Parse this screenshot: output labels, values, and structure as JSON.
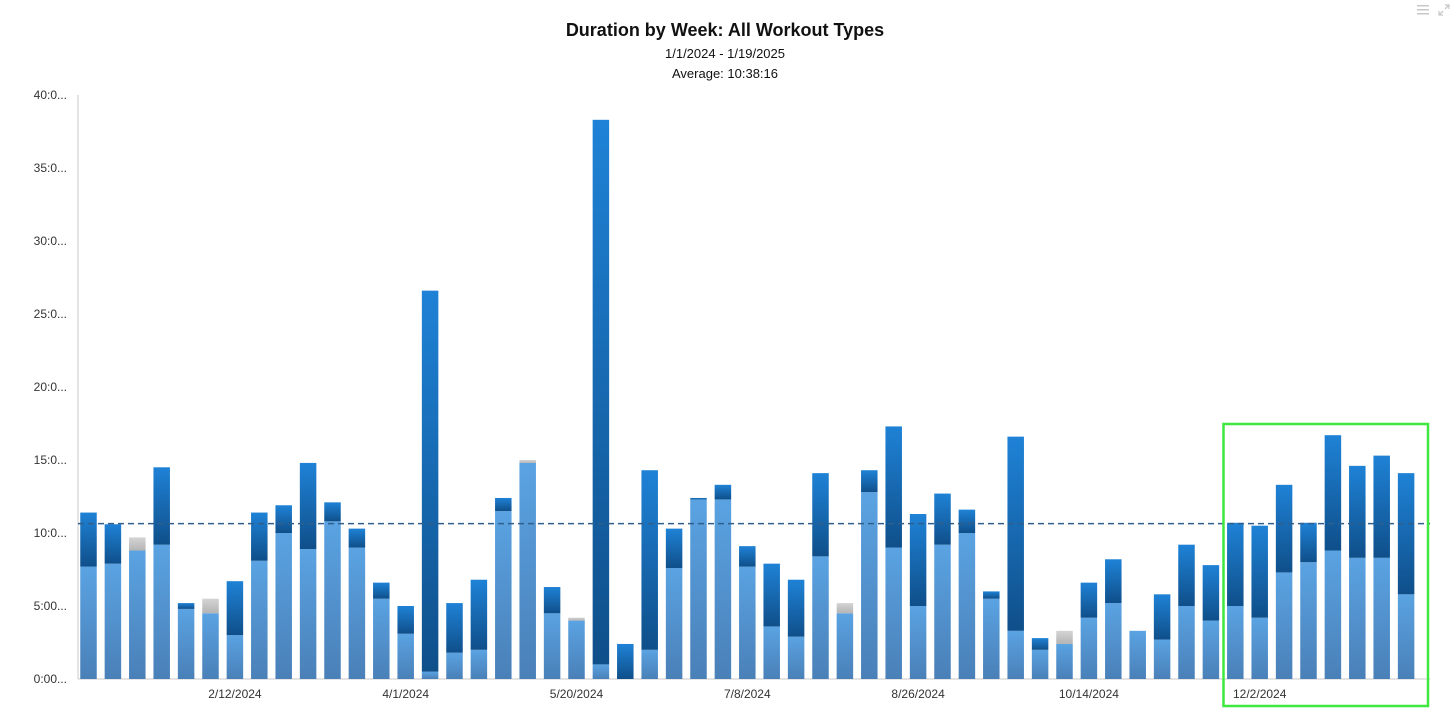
{
  "chart_data": {
    "type": "bar",
    "stacked": true,
    "title": "Duration by Week: All Workout Types",
    "subtitle": "1/1/2024 - 1/19/2025",
    "average_label": "Average: 10:38:16",
    "average_value": 10.64,
    "ylim": [
      0,
      40
    ],
    "y_ticks": [
      "0:00...",
      "5:00...",
      "10:0...",
      "15:0...",
      "20:0...",
      "25:0...",
      "30:0...",
      "35:0...",
      "40:0..."
    ],
    "x_tick_labels": [
      {
        "label": "2/12/2024",
        "index": 6
      },
      {
        "label": "4/1/2024",
        "index": 13
      },
      {
        "label": "5/20/2024",
        "index": 20
      },
      {
        "label": "7/8/2024",
        "index": 27
      },
      {
        "label": "8/26/2024",
        "index": 34
      },
      {
        "label": "10/14/2024",
        "index": 41
      },
      {
        "label": "12/2/2024",
        "index": 48
      }
    ],
    "grid": false,
    "colors": {
      "light": "#5b9bd5",
      "dark": "#1b6aad",
      "gray": "#c6c6c6",
      "average_line": "#2f5f8a",
      "highlight": "#3ee83e"
    },
    "highlight_range": [
      47,
      54
    ],
    "series": [
      {
        "key": "light",
        "values": [
          7.7,
          7.9,
          8.8,
          9.2,
          4.8,
          4.5,
          3.0,
          8.1,
          10.0,
          8.9,
          10.8,
          9.0,
          5.5,
          3.1,
          0.5,
          1.8,
          2.0,
          11.5,
          14.8,
          4.5,
          4.0,
          1.0,
          0,
          2.0,
          7.6,
          12.3,
          12.3,
          7.7,
          3.6,
          2.9,
          8.4,
          4.5,
          12.8,
          9.0,
          5.0,
          9.2,
          10.0,
          5.5,
          3.3,
          2.0,
          2.4,
          4.2,
          5.2,
          3.3,
          2.7,
          5.0,
          4.0,
          5.0,
          4.2,
          7.3,
          8.0,
          8.8,
          8.3,
          8.3,
          5.8
        ]
      },
      {
        "key": "dark",
        "values": [
          3.7,
          2.7,
          0,
          5.3,
          0.4,
          0,
          3.7,
          3.3,
          1.9,
          5.9,
          1.3,
          1.3,
          1.1,
          1.9,
          26.1,
          3.4,
          4.8,
          0.9,
          0,
          1.8,
          0,
          37.3,
          2.4,
          12.3,
          2.7,
          0.1,
          1.0,
          1.4,
          4.3,
          3.9,
          5.7,
          0,
          1.5,
          8.3,
          6.3,
          3.5,
          1.6,
          0.5,
          13.3,
          0.8,
          0,
          2.4,
          3.0,
          0,
          3.1,
          4.2,
          3.8,
          5.7,
          6.3,
          6.0,
          2.7,
          7.9,
          6.3,
          7.0,
          8.3
        ]
      },
      {
        "key": "gray",
        "values": [
          0,
          0,
          0.9,
          0,
          0,
          1.0,
          0,
          0,
          0,
          0,
          0,
          0,
          0,
          0,
          0,
          0,
          0,
          0,
          0.2,
          0,
          0.2,
          0,
          0,
          0,
          0,
          0,
          0,
          0,
          0,
          0,
          0,
          0.7,
          0,
          0,
          0,
          0,
          0,
          0,
          0,
          0,
          0.9,
          0,
          0,
          0,
          0,
          0,
          0,
          0,
          0,
          0,
          0,
          0,
          0,
          0,
          0
        ]
      }
    ]
  }
}
